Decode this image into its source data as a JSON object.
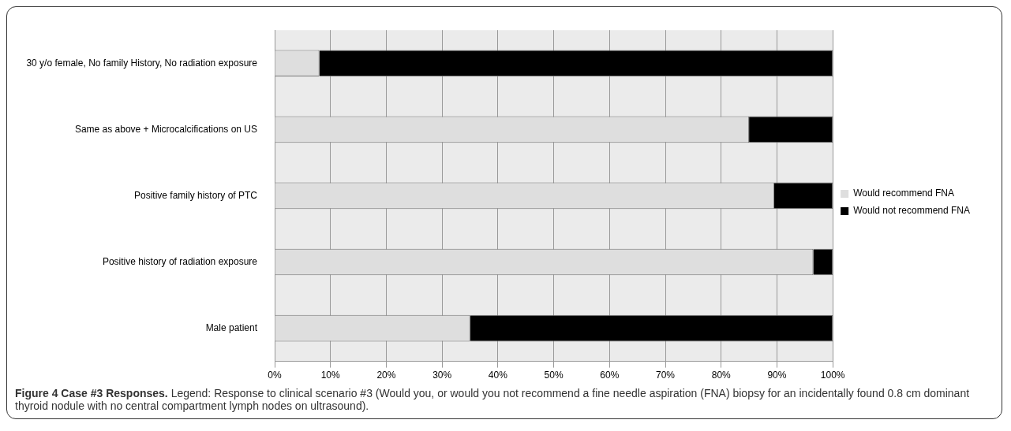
{
  "chart_data": {
    "type": "bar",
    "orientation": "horizontal",
    "stacked": true,
    "title": "Figure 4 Case #3 Responses.",
    "annotations": [
      "Legend: Response to clinical scenario #3 (Would you, or would you not recommend a fine needle aspiration (FNA) biopsy for an incidentally found 0.8 cm dominant thyroid nodule with no central compartment lymph nodes on ultrasound)."
    ],
    "categories": [
      "30 y/o female, No family History, No radiation exposure",
      "Same as above + Microcalcifications on US",
      "Positive family history of PTC",
      "Positive history of radiation exposure",
      "Male patient"
    ],
    "series": [
      {
        "name": "Would recommend FNA",
        "color": "#dedede",
        "values": [
          8,
          85,
          89.5,
          96.5,
          35
        ]
      },
      {
        "name": "Would not recommend FNA",
        "color": "#000000",
        "values": [
          92,
          15,
          10.5,
          3.5,
          65
        ]
      }
    ],
    "xlim": [
      0,
      100
    ],
    "xticks": [
      {
        "value": 0,
        "label": "0%"
      },
      {
        "value": 10,
        "label": "10%"
      },
      {
        "value": 20,
        "label": "20%"
      },
      {
        "value": 30,
        "label": "30%"
      },
      {
        "value": 40,
        "label": "40%"
      },
      {
        "value": 50,
        "label": "50%"
      },
      {
        "value": 60,
        "label": "60%"
      },
      {
        "value": 70,
        "label": "70%"
      },
      {
        "value": 80,
        "label": "80%"
      },
      {
        "value": 90,
        "label": "90%"
      },
      {
        "value": 100,
        "label": "100%"
      }
    ],
    "grid": "x",
    "legend": "right"
  }
}
